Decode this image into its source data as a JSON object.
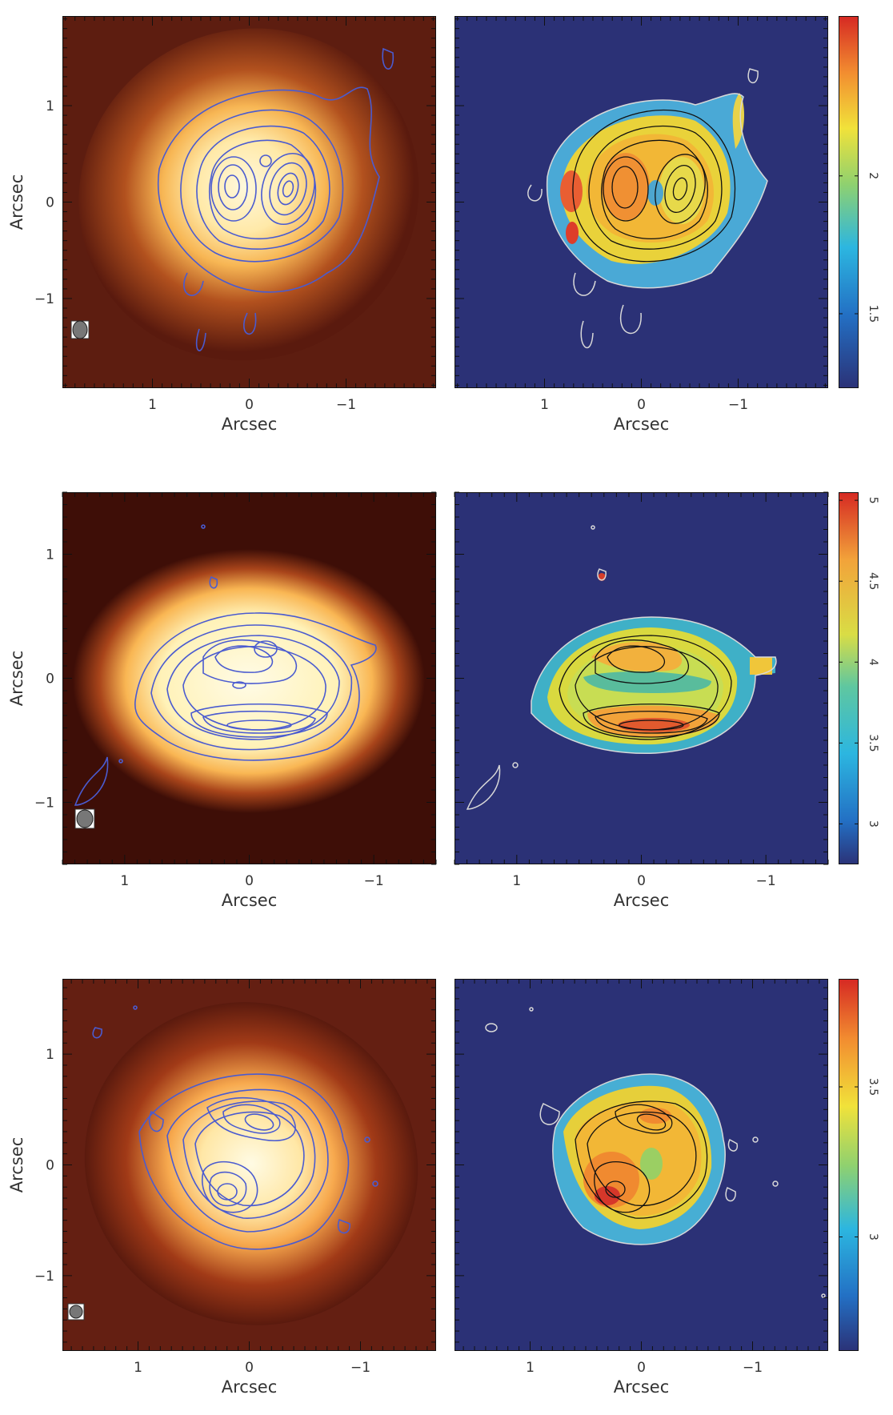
{
  "chart_data": [
    {
      "type": "heatmap",
      "panel": "row1-intensity",
      "xlabel": "Arcsec",
      "ylabel": "Arcsec",
      "xlim": [
        1.93,
        -1.93
      ],
      "ylim": [
        -1.93,
        1.93
      ],
      "xticks": [
        "1",
        "0",
        "−1"
      ],
      "yticks": [
        "1",
        "0",
        "−1"
      ],
      "contours": "blue"
    },
    {
      "type": "heatmap",
      "panel": "row1-map",
      "xlabel": "Arcsec",
      "xlim": [
        1.93,
        -1.93
      ],
      "ylim": [
        -1.93,
        1.93
      ],
      "xticks": [
        "1",
        "0",
        "−1"
      ],
      "colorbar": {
        "min": 1.23,
        "max": 2.58,
        "ticks": [
          "2",
          "1.5"
        ]
      },
      "contours": "black/white"
    },
    {
      "type": "heatmap",
      "panel": "row2-intensity",
      "xlabel": "Arcsec",
      "ylabel": "Arcsec",
      "xlim": [
        1.5,
        -1.5
      ],
      "ylim": [
        -1.5,
        1.5
      ],
      "xticks": [
        "1",
        "0",
        "−1"
      ],
      "yticks": [
        "1",
        "0",
        "−1"
      ],
      "contours": "blue"
    },
    {
      "type": "heatmap",
      "panel": "row2-map",
      "xlabel": "Arcsec",
      "xlim": [
        1.5,
        -1.5
      ],
      "ylim": [
        -1.5,
        1.5
      ],
      "xticks": [
        "1",
        "0",
        "−1"
      ],
      "colorbar": {
        "min": 2.75,
        "max": 5.05,
        "ticks": [
          "5",
          "4.5",
          "4",
          "3.5",
          "3"
        ]
      },
      "contours": "black/white"
    },
    {
      "type": "heatmap",
      "panel": "row3-intensity",
      "xlabel": "Arcsec",
      "ylabel": "Arcsec",
      "xlim": [
        1.68,
        -1.68
      ],
      "ylim": [
        -1.68,
        1.68
      ],
      "xticks": [
        "1",
        "0",
        "−1"
      ],
      "yticks": [
        "1",
        "0",
        "−1"
      ],
      "contours": "blue"
    },
    {
      "type": "heatmap",
      "panel": "row3-map",
      "xlabel": "Arcsec",
      "xlim": [
        1.68,
        -1.68
      ],
      "ylim": [
        -1.68,
        1.68
      ],
      "xticks": [
        "1",
        "0",
        "−1"
      ],
      "colorbar": {
        "min": 2.62,
        "max": 3.86,
        "ticks": [
          "3.5",
          "3"
        ]
      },
      "contours": "black/white"
    }
  ],
  "colors": {
    "map_background": "#2b3176",
    "intensity_background": "#5a1a0e",
    "contour_blue": "#4a5bd0",
    "contour_black": "#111111",
    "contour_white": "#d8d8d8"
  },
  "icons": [
    "beam-ellipse-icon"
  ]
}
